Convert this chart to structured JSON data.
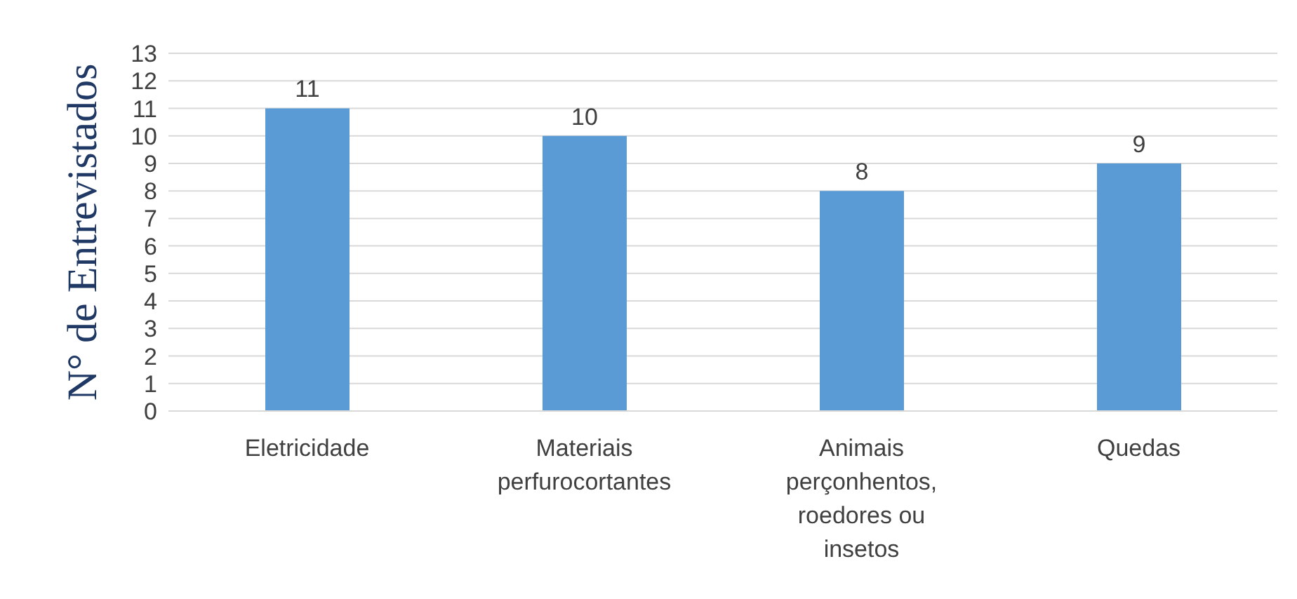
{
  "chart_data": {
    "type": "bar",
    "ylabel": "N° de Entrevistados",
    "categories": [
      "Eletricidade",
      "Materiais perfurocortantes",
      "Animais perçonhentos, roedores ou insetos",
      "Quedas"
    ],
    "values": [
      11,
      10,
      8,
      9
    ],
    "color": "#5b9bd5",
    "ylim": [
      0,
      13
    ],
    "yticks": [
      0,
      1,
      2,
      3,
      4,
      5,
      6,
      7,
      8,
      9,
      10,
      11,
      12,
      13
    ],
    "grid": "y",
    "data_labels": true
  }
}
